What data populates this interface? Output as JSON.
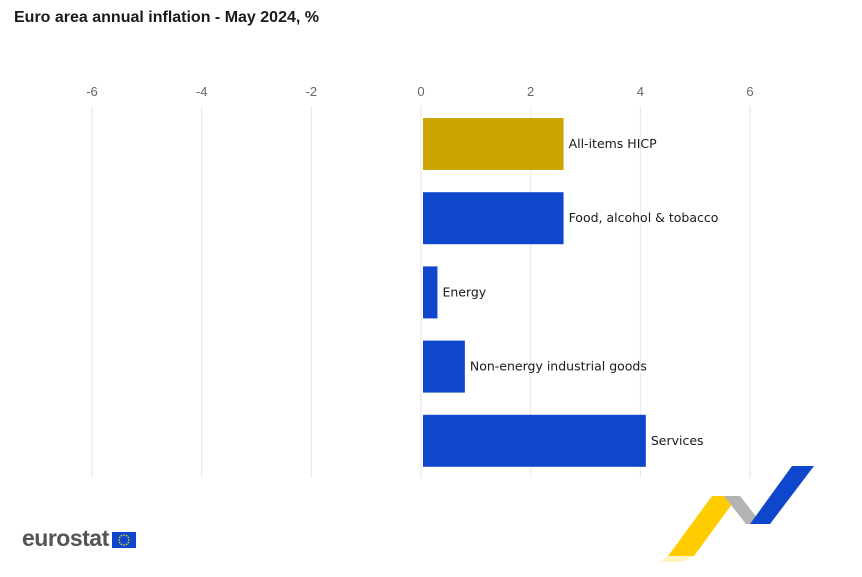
{
  "title": "Euro area annual inflation - May 2024, %",
  "brand": {
    "name": "eurostat"
  },
  "colors": {
    "headline_bar": "#ccA500",
    "component_bar": "#0e47cb",
    "gridline": "#e6e6e6",
    "tick_text": "#666666"
  },
  "chart_data": {
    "type": "bar",
    "orientation": "horizontal",
    "title": "Euro area annual inflation - May 2024, %",
    "categories": [
      "All-items HICP",
      "Food, alcohol & tobacco",
      "Energy",
      "Non-energy industrial goods",
      "Services"
    ],
    "values": [
      2.6,
      2.6,
      0.3,
      0.8,
      4.1
    ],
    "xlim": [
      -6,
      7
    ],
    "xticks": [
      -6,
      -4,
      -2,
      0,
      2,
      4,
      6
    ],
    "axis_position": "top",
    "grid": true,
    "xlabel": "",
    "ylabel": ""
  }
}
